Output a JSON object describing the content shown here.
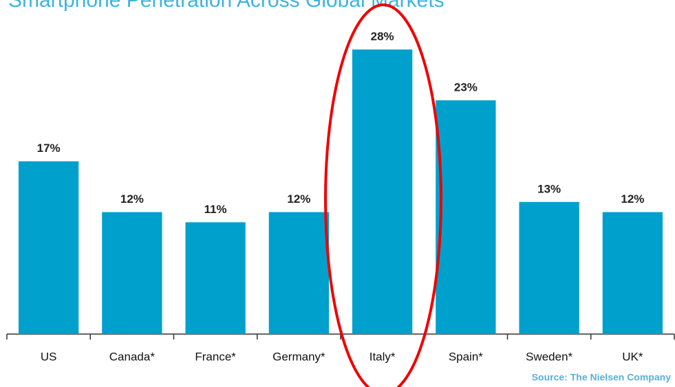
{
  "chart_data": {
    "type": "bar",
    "title": "Smartphone Penetration Across Global Markets",
    "categories": [
      "US",
      "Canada*",
      "France*",
      "Germany*",
      "Italy*",
      "Spain*",
      "Sweden*",
      "UK*"
    ],
    "values": [
      17,
      12,
      11,
      12,
      28,
      23,
      13,
      12
    ],
    "value_labels": [
      "17%",
      "12%",
      "11%",
      "12%",
      "28%",
      "23%",
      "13%",
      "12%"
    ],
    "color": "#00a0cc",
    "ylim": [
      0,
      28
    ],
    "source": "Source: The Nielsen Company"
  }
}
